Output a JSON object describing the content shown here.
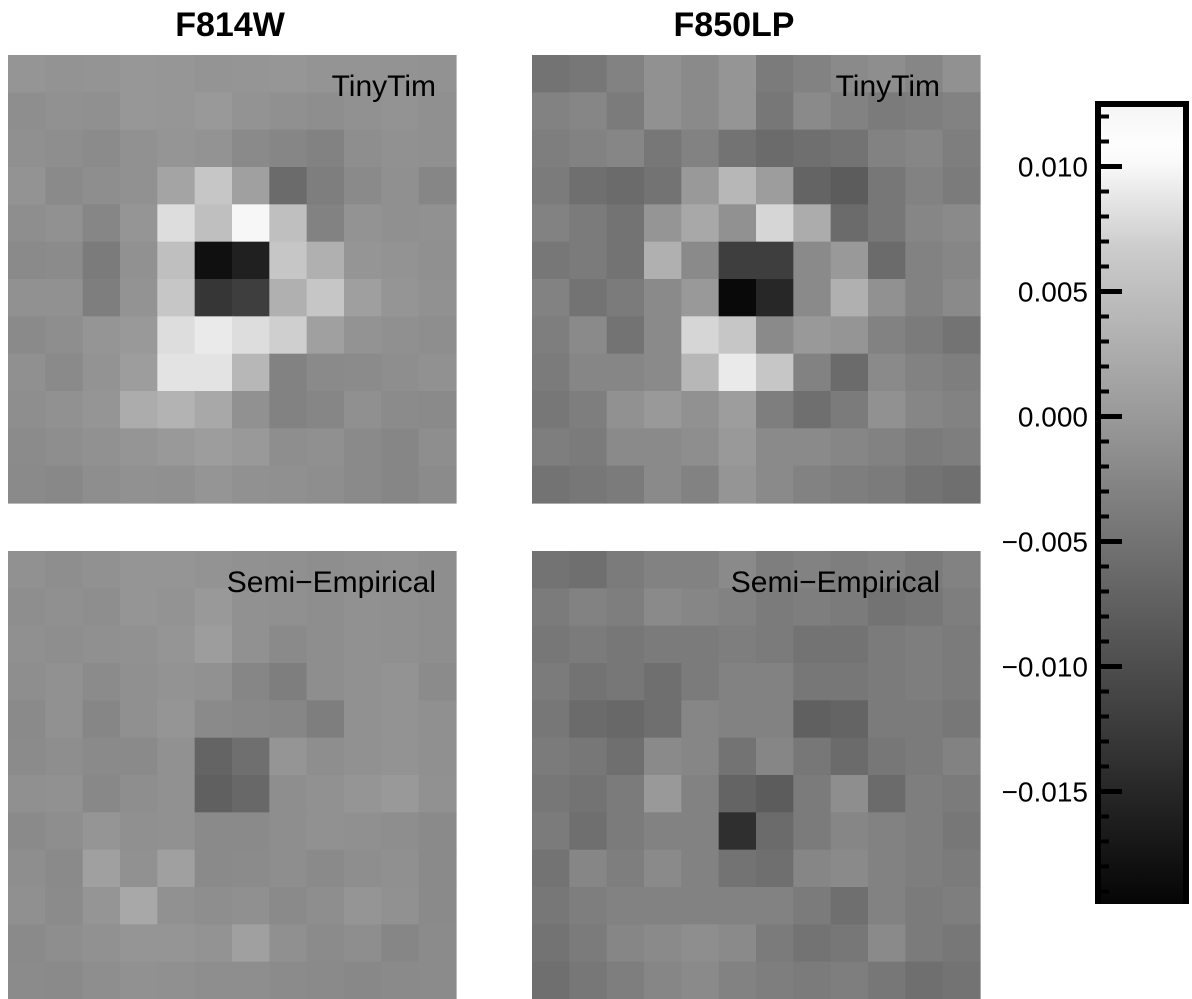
{
  "chart_data": {
    "type": "heatmap",
    "columns": [
      "F814W",
      "F850LP"
    ],
    "rows": [
      "TinyTim",
      "Semi−Empirical"
    ],
    "colorbar": {
      "colormap": "grayscale (black = low, white = high)",
      "range": [
        -0.0195,
        0.0125
      ],
      "ticks": [
        {
          "value": 0.01,
          "label": "0.010"
        },
        {
          "value": 0.005,
          "label": "0.005"
        },
        {
          "value": 0.0,
          "label": "0.000"
        },
        {
          "value": -0.005,
          "label": "−0.005"
        },
        {
          "value": -0.01,
          "label": "−0.010"
        },
        {
          "value": -0.015,
          "label": "−0.015"
        }
      ],
      "minor_tick_step": 0.001
    },
    "panels": [
      {
        "title": "F814W",
        "label": "TinyTim",
        "grid": [
          [
            -0.0005,
            -0.0008,
            -0.0006,
            -0.0003,
            -0.0004,
            -0.0006,
            -0.0005,
            -0.0004,
            -0.0006,
            -0.0007,
            -0.0008,
            -0.0009
          ],
          [
            -0.0015,
            -0.001,
            -0.0012,
            -0.0002,
            -0.0004,
            0.0,
            -0.0008,
            -0.0012,
            -0.0015,
            -0.001,
            -0.0008,
            -0.0012
          ],
          [
            -0.0012,
            -0.0015,
            -0.0018,
            -0.001,
            -0.0005,
            -0.0008,
            -0.002,
            -0.0025,
            -0.003,
            -0.0015,
            -0.001,
            -0.0012
          ],
          [
            -0.0008,
            -0.002,
            -0.0015,
            -0.001,
            0.0015,
            0.006,
            0.001,
            -0.006,
            -0.0035,
            -0.002,
            -0.0012,
            -0.0025
          ],
          [
            -0.0015,
            -0.001,
            -0.0025,
            -0.0005,
            0.008,
            0.005,
            0.01,
            0.005,
            -0.003,
            -0.0008,
            -0.0012,
            -0.001
          ],
          [
            -0.002,
            -0.0018,
            -0.004,
            -0.001,
            0.005,
            -0.018,
            -0.016,
            0.006,
            0.003,
            -0.0005,
            -0.0008,
            -0.0012
          ],
          [
            -0.001,
            -0.001,
            -0.0035,
            -0.0008,
            0.006,
            -0.013,
            -0.012,
            0.003,
            0.006,
            0.0008,
            -0.0005,
            -0.001
          ],
          [
            -0.002,
            -0.0015,
            -0.0005,
            0.0,
            0.008,
            0.009,
            0.008,
            0.007,
            0.001,
            -0.0008,
            -0.0012,
            -0.0015
          ],
          [
            -0.0012,
            -0.002,
            -0.0008,
            0.0005,
            0.0085,
            0.0085,
            0.004,
            -0.003,
            -0.002,
            -0.0018,
            -0.0015,
            -0.001
          ],
          [
            -0.0015,
            -0.001,
            -0.0005,
            0.0025,
            0.0035,
            0.002,
            -0.001,
            -0.003,
            -0.0025,
            -0.0012,
            -0.0018,
            -0.002
          ],
          [
            -0.0018,
            -0.0015,
            -0.001,
            -0.0005,
            0.0,
            0.0005,
            0.0,
            -0.0015,
            -0.0012,
            -0.002,
            -0.0025,
            -0.0015
          ],
          [
            -0.002,
            -0.0022,
            -0.0015,
            -0.001,
            -0.0012,
            -0.0005,
            -0.001,
            -0.0012,
            -0.0015,
            -0.002,
            -0.0025,
            -0.0018
          ]
        ]
      },
      {
        "title": "F850LP",
        "label": "TinyTim",
        "grid": [
          [
            -0.005,
            -0.0045,
            -0.003,
            -0.001,
            -0.002,
            -0.0005,
            -0.004,
            -0.003,
            -0.002,
            -0.0015,
            -0.0025,
            -0.001
          ],
          [
            -0.003,
            -0.0025,
            -0.004,
            -0.001,
            -0.002,
            -0.0005,
            -0.0045,
            -0.002,
            -0.003,
            -0.004,
            -0.0035,
            -0.003
          ],
          [
            -0.0035,
            -0.003,
            -0.0025,
            -0.0045,
            -0.003,
            -0.005,
            -0.006,
            -0.0055,
            -0.005,
            -0.003,
            -0.0025,
            -0.0035
          ],
          [
            -0.004,
            -0.0055,
            -0.006,
            -0.005,
            0.0,
            0.004,
            0.0005,
            -0.007,
            -0.008,
            -0.0045,
            -0.003,
            -0.004
          ],
          [
            -0.003,
            -0.004,
            -0.005,
            -0.0005,
            0.002,
            -0.001,
            0.0075,
            0.0025,
            -0.006,
            -0.0045,
            -0.0025,
            -0.002
          ],
          [
            -0.0045,
            -0.004,
            -0.005,
            0.003,
            -0.002,
            -0.012,
            -0.012,
            -0.002,
            0.0,
            -0.006,
            -0.003,
            -0.0025
          ],
          [
            -0.003,
            -0.005,
            -0.004,
            -0.002,
            0.0,
            -0.019,
            -0.015,
            -0.002,
            0.003,
            -0.001,
            -0.003,
            -0.002
          ],
          [
            -0.0035,
            -0.002,
            -0.005,
            -0.002,
            0.0075,
            0.006,
            -0.002,
            0.0,
            -0.0005,
            -0.003,
            -0.004,
            -0.005
          ],
          [
            -0.004,
            -0.0025,
            -0.0025,
            -0.002,
            0.004,
            0.009,
            0.006,
            -0.003,
            -0.006,
            -0.002,
            -0.003,
            -0.0035
          ],
          [
            -0.0045,
            -0.0035,
            -0.001,
            0.0,
            -0.001,
            0.0005,
            -0.0035,
            -0.0055,
            -0.004,
            -0.001,
            -0.0025,
            -0.003
          ],
          [
            -0.0035,
            -0.004,
            -0.002,
            -0.002,
            -0.0015,
            0.0,
            -0.002,
            -0.002,
            -0.0025,
            -0.003,
            -0.004,
            -0.0035
          ],
          [
            -0.005,
            -0.0045,
            -0.004,
            -0.002,
            -0.003,
            -0.0005,
            -0.002,
            -0.003,
            -0.0035,
            -0.004,
            -0.005,
            -0.0055
          ]
        ]
      },
      {
        "title": "F814W",
        "label": "Semi−Empirical",
        "grid": [
          [
            -0.001,
            -0.0015,
            -0.001,
            -0.0005,
            -0.0005,
            -0.0008,
            -0.001,
            -0.0012,
            -0.0015,
            -0.0012,
            -0.001,
            -0.0015
          ],
          [
            -0.0015,
            -0.0012,
            -0.0015,
            -0.0005,
            -0.0008,
            0.0,
            -0.001,
            -0.0012,
            -0.0015,
            -0.001,
            -0.0012,
            -0.0015
          ],
          [
            -0.0012,
            -0.0015,
            -0.0012,
            -0.001,
            -0.0005,
            0.0005,
            -0.001,
            -0.002,
            -0.0015,
            -0.001,
            -0.0012,
            -0.0015
          ],
          [
            -0.0015,
            -0.001,
            -0.0018,
            -0.0012,
            -0.0008,
            -0.001,
            -0.0025,
            -0.0035,
            -0.0015,
            -0.001,
            -0.0008,
            -0.0018
          ],
          [
            -0.002,
            -0.001,
            -0.0025,
            -0.0012,
            -0.0005,
            -0.002,
            -0.0022,
            -0.0025,
            -0.0035,
            -0.001,
            -0.0008,
            -0.0012
          ],
          [
            -0.0018,
            -0.0015,
            -0.002,
            -0.002,
            -0.001,
            -0.007,
            -0.0055,
            -0.0005,
            -0.0015,
            -0.001,
            -0.0008,
            -0.0012
          ],
          [
            -0.0012,
            -0.001,
            -0.0022,
            -0.0015,
            -0.001,
            -0.0075,
            -0.0065,
            -0.0015,
            -0.001,
            -0.0005,
            0.0,
            -0.001
          ],
          [
            -0.002,
            -0.0015,
            -0.0005,
            -0.0012,
            -0.001,
            -0.002,
            -0.002,
            -0.0015,
            -0.001,
            -0.0012,
            -0.0015,
            -0.002
          ],
          [
            -0.0015,
            -0.002,
            0.001,
            -0.001,
            0.001,
            -0.002,
            -0.0018,
            -0.0015,
            -0.002,
            -0.0015,
            -0.0012,
            -0.002
          ],
          [
            -0.0012,
            -0.0018,
            -0.0005,
            0.002,
            -0.001,
            -0.0015,
            -0.0012,
            -0.002,
            -0.0015,
            -0.0005,
            -0.001,
            -0.002
          ],
          [
            -0.002,
            -0.0015,
            -0.001,
            -0.0005,
            -0.0005,
            -0.0008,
            0.001,
            -0.0012,
            -0.0018,
            -0.0015,
            -0.0025,
            -0.0018
          ],
          [
            -0.0018,
            -0.002,
            -0.0015,
            -0.001,
            -0.0012,
            -0.0015,
            -0.0015,
            -0.0018,
            -0.002,
            -0.0022,
            -0.002,
            -0.0018
          ]
        ]
      },
      {
        "title": "F850LP",
        "label": "Semi−Empirical",
        "grid": [
          [
            -0.005,
            -0.0055,
            -0.004,
            -0.003,
            -0.003,
            -0.002,
            -0.0035,
            -0.003,
            -0.0035,
            -0.003,
            -0.004,
            -0.003
          ],
          [
            -0.004,
            -0.003,
            -0.0035,
            -0.002,
            -0.0025,
            -0.003,
            -0.004,
            -0.0035,
            -0.004,
            -0.005,
            -0.0045,
            -0.0035
          ],
          [
            -0.0045,
            -0.004,
            -0.0045,
            -0.004,
            -0.004,
            -0.0035,
            -0.004,
            -0.005,
            -0.005,
            -0.004,
            -0.0035,
            -0.004
          ],
          [
            -0.004,
            -0.005,
            -0.0045,
            -0.0055,
            -0.004,
            -0.003,
            -0.003,
            -0.0045,
            -0.0045,
            -0.004,
            -0.0035,
            -0.004
          ],
          [
            -0.0045,
            -0.006,
            -0.0065,
            -0.0055,
            -0.0025,
            -0.003,
            -0.003,
            -0.0075,
            -0.007,
            -0.004,
            -0.004,
            -0.0045
          ],
          [
            -0.004,
            -0.0045,
            -0.0055,
            -0.002,
            -0.0025,
            -0.005,
            -0.0025,
            -0.0045,
            -0.006,
            -0.0045,
            -0.004,
            -0.003
          ],
          [
            -0.0045,
            -0.005,
            -0.004,
            0.0,
            -0.003,
            -0.007,
            -0.008,
            -0.004,
            -0.0015,
            -0.006,
            -0.0035,
            -0.004
          ],
          [
            -0.004,
            -0.0055,
            -0.004,
            -0.003,
            -0.003,
            -0.014,
            -0.006,
            -0.004,
            -0.0025,
            -0.003,
            -0.0035,
            -0.0045
          ],
          [
            -0.005,
            -0.0025,
            -0.0035,
            -0.002,
            -0.003,
            -0.005,
            -0.0055,
            -0.0025,
            -0.002,
            -0.003,
            -0.0035,
            -0.004
          ],
          [
            -0.0045,
            -0.0035,
            -0.003,
            -0.003,
            -0.003,
            -0.003,
            -0.003,
            -0.004,
            -0.0055,
            -0.003,
            -0.004,
            -0.0035
          ],
          [
            -0.005,
            -0.004,
            -0.0025,
            -0.002,
            -0.0015,
            -0.002,
            -0.004,
            -0.005,
            -0.0045,
            -0.002,
            -0.004,
            -0.0045
          ],
          [
            -0.0055,
            -0.0045,
            -0.0035,
            -0.0025,
            -0.002,
            -0.003,
            -0.0035,
            -0.004,
            -0.0035,
            -0.0045,
            -0.0055,
            -0.005
          ]
        ]
      }
    ]
  }
}
